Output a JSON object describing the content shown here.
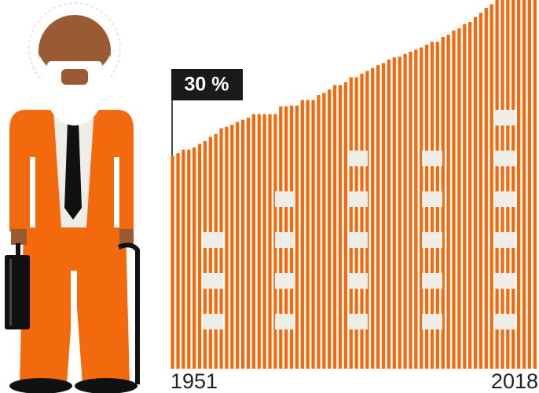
{
  "chart_data": {
    "type": "bar",
    "categories": [
      "1951",
      null,
      null,
      null,
      null,
      null,
      null,
      null,
      null,
      null,
      null,
      null,
      null,
      null,
      null,
      null,
      null,
      null,
      null,
      null,
      null,
      null,
      null,
      null,
      null,
      null,
      null,
      null,
      null,
      null,
      null,
      null,
      null,
      null,
      null,
      null,
      null,
      null,
      null,
      null,
      null,
      null,
      null,
      null,
      null,
      null,
      null,
      null,
      null,
      null,
      null,
      null,
      null,
      null,
      null,
      null,
      null,
      null,
      null,
      null,
      null,
      null,
      null,
      null,
      null,
      null,
      null,
      "2018"
    ],
    "values": [
      30,
      30.4,
      30.9,
      30.9,
      31.2,
      31.7,
      32.1,
      32.7,
      33.1,
      33.9,
      34.1,
      34.4,
      34.8,
      35.1,
      35.4,
      35.9,
      35.9,
      35.9,
      35.9,
      35.9,
      37,
      37,
      37.1,
      37.1,
      37.9,
      37.9,
      37.9,
      38.6,
      38.9,
      39.4,
      40,
      40,
      40.4,
      41.1,
      41.1,
      41.6,
      42,
      42.4,
      42.8,
      43.1,
      43.6,
      43.9,
      44,
      44.4,
      44.7,
      45,
      45.3,
      45.7,
      46.1,
      46.1,
      46.8,
      47.1,
      47.7,
      48,
      48.6,
      48.9,
      49.6,
      50.2,
      50.9,
      51.4,
      52,
      52,
      52,
      52,
      52,
      52,
      52,
      52
    ],
    "value_labels": [
      "30 %",
      null,
      null,
      null,
      null,
      null,
      null,
      null,
      null,
      null,
      null,
      null,
      null,
      null,
      null,
      null,
      null,
      null,
      null,
      null,
      null,
      null,
      null,
      null,
      null,
      null,
      null,
      null,
      null,
      null,
      null,
      null,
      null,
      null,
      null,
      null,
      null,
      null,
      null,
      null,
      null,
      null,
      null,
      null,
      null,
      null,
      null,
      null,
      null,
      null,
      null,
      null,
      null,
      null,
      null,
      null,
      null,
      null,
      null,
      null,
      null,
      null,
      null,
      null,
      null,
      null,
      null,
      null
    ],
    "color": "#f26a0d",
    "ylim": [
      0,
      52
    ]
  }
}
